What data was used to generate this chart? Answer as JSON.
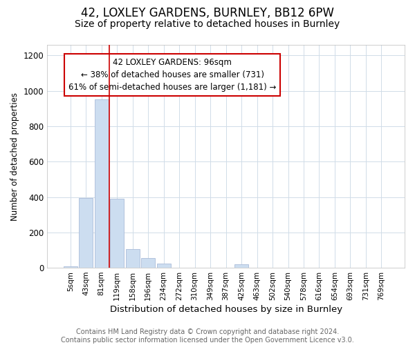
{
  "title1": "42, LOXLEY GARDENS, BURNLEY, BB12 6PW",
  "title2": "Size of property relative to detached houses in Burnley",
  "xlabel": "Distribution of detached houses by size in Burnley",
  "ylabel": "Number of detached properties",
  "footer1": "Contains HM Land Registry data © Crown copyright and database right 2024.",
  "footer2": "Contains public sector information licensed under the Open Government Licence v3.0.",
  "annotation_line1": "42 LOXLEY GARDENS: 96sqm",
  "annotation_line2": "← 38% of detached houses are smaller (731)",
  "annotation_line3": "61% of semi-detached houses are larger (1,181) →",
  "bar_labels": [
    "5sqm",
    "43sqm",
    "81sqm",
    "119sqm",
    "158sqm",
    "196sqm",
    "234sqm",
    "272sqm",
    "310sqm",
    "349sqm",
    "387sqm",
    "425sqm",
    "463sqm",
    "502sqm",
    "540sqm",
    "578sqm",
    "616sqm",
    "654sqm",
    "693sqm",
    "731sqm",
    "769sqm"
  ],
  "bar_values": [
    10,
    395,
    950,
    390,
    105,
    53,
    22,
    0,
    0,
    0,
    0,
    18,
    0,
    0,
    0,
    0,
    0,
    0,
    0,
    0,
    0
  ],
  "bar_color": "#ccddf0",
  "bar_edge_color": "#aabbd8",
  "red_line_x": 2.5,
  "red_color": "#cc0000",
  "ylim": [
    0,
    1260
  ],
  "yticks": [
    0,
    200,
    400,
    600,
    800,
    1000,
    1200
  ],
  "background_color": "#ffffff",
  "grid_color": "#d0dce8",
  "title1_fontsize": 12,
  "title2_fontsize": 10,
  "xlabel_fontsize": 9.5,
  "ylabel_fontsize": 8.5,
  "tick_fontsize": 7.5,
  "annotation_fontsize": 8.5,
  "footer_fontsize": 7
}
